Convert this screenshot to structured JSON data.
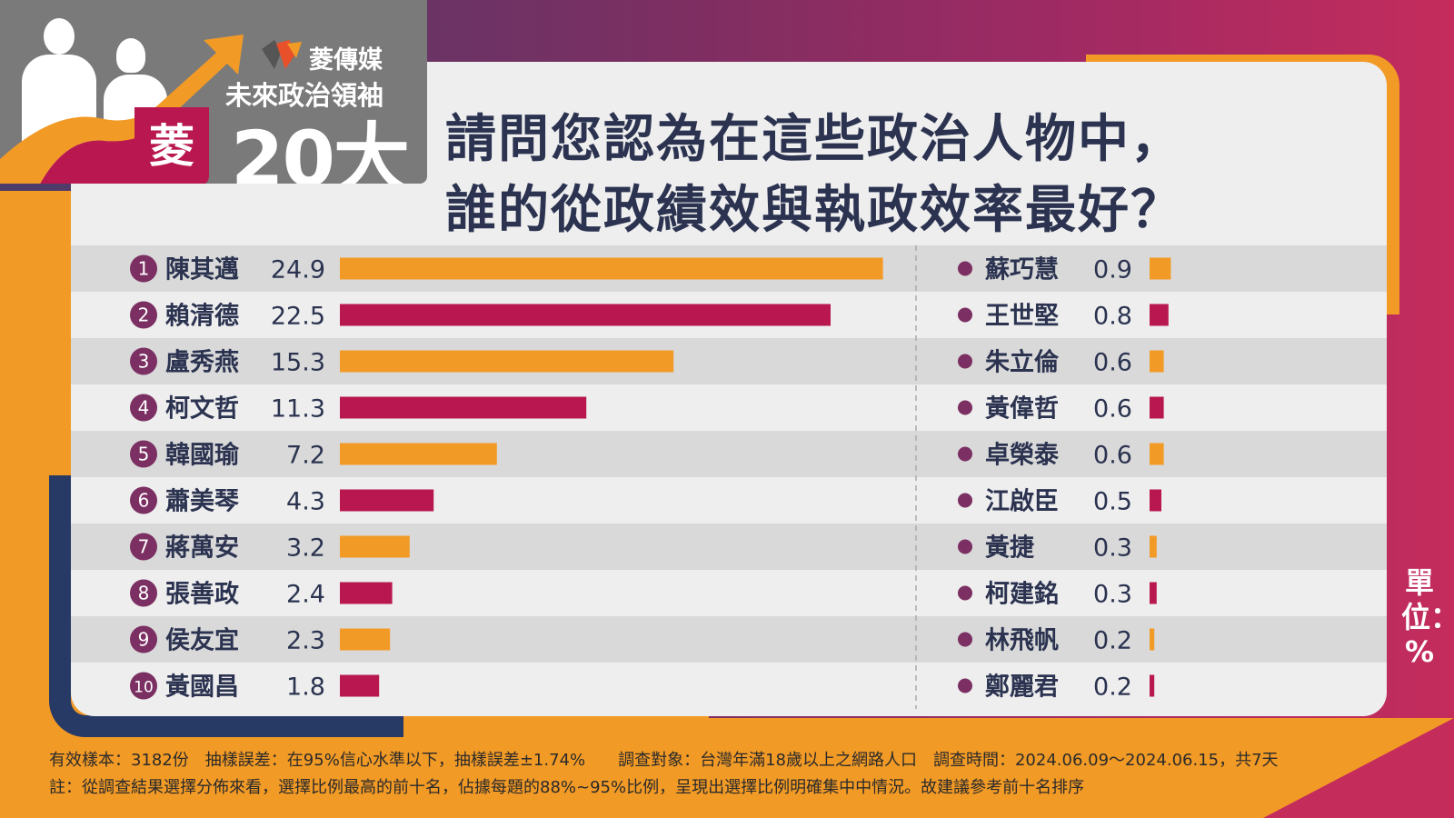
{
  "brand": {
    "name": "菱傳媒",
    "series_title": "未來政治領袖",
    "top_label": "20大",
    "badge_char": "菱"
  },
  "question": {
    "line1": "請問您認為在這些政治人物中，",
    "line2": "誰的從政績效與執政效率最好？"
  },
  "unit_label": "單位：%",
  "colors": {
    "orange": "#f29a26",
    "crimson": "#b8184f",
    "navy": "#273a66",
    "purple_dot": "#7b2f62",
    "text_dark": "#2b3350"
  },
  "footer": {
    "line1": "有效樣本：3182份　抽樣誤差：在95%信心水準以下，抽樣誤差±1.74%　　調查對象：台灣年滿18歲以上之網路人口　調查時間：2024.06.09～2024.06.15，共7天",
    "line2": "註：從調查結果選擇分佈來看，選擇比例最高的前十名，佔據每題的88%~95%比例，呈現出選擇比例明確集中中情況。故建議參考前十名排序"
  },
  "chart_data": {
    "type": "bar",
    "title": "請問您認為在這些政治人物中，誰的從政績效與執政效率最好？",
    "unit": "%",
    "top10": [
      {
        "rank": "1",
        "name": "陳其邁",
        "value": 24.9,
        "label": "24.9"
      },
      {
        "rank": "2",
        "name": "賴清德",
        "value": 22.5,
        "label": "22.5"
      },
      {
        "rank": "3",
        "name": "盧秀燕",
        "value": 15.3,
        "label": "15.3"
      },
      {
        "rank": "4",
        "name": "柯文哲",
        "value": 11.3,
        "label": "11.3"
      },
      {
        "rank": "5",
        "name": "韓國瑜",
        "value": 7.2,
        "label": "7.2"
      },
      {
        "rank": "6",
        "name": "蕭美琴",
        "value": 4.3,
        "label": "4.3"
      },
      {
        "rank": "7",
        "name": "蔣萬安",
        "value": 3.2,
        "label": "3.2"
      },
      {
        "rank": "8",
        "name": "張善政",
        "value": 2.4,
        "label": "2.4"
      },
      {
        "rank": "9",
        "name": "侯友宜",
        "value": 2.3,
        "label": "2.3"
      },
      {
        "rank": "10",
        "name": "黃國昌",
        "value": 1.8,
        "label": "1.8"
      }
    ],
    "others": [
      {
        "name": "蘇巧慧",
        "value": 0.9,
        "label": "0.9"
      },
      {
        "name": "王世堅",
        "value": 0.8,
        "label": "0.8"
      },
      {
        "name": "朱立倫",
        "value": 0.6,
        "label": "0.6"
      },
      {
        "name": "黃偉哲",
        "value": 0.6,
        "label": "0.6"
      },
      {
        "name": "卓榮泰",
        "value": 0.6,
        "label": "0.6"
      },
      {
        "name": "江啟臣",
        "value": 0.5,
        "label": "0.5"
      },
      {
        "name": "黃捷",
        "value": 0.3,
        "label": "0.3"
      },
      {
        "name": "柯建銘",
        "value": 0.3,
        "label": "0.3"
      },
      {
        "name": "林飛帆",
        "value": 0.2,
        "label": "0.2"
      },
      {
        "name": "鄭麗君",
        "value": 0.2,
        "label": "0.2"
      }
    ]
  }
}
